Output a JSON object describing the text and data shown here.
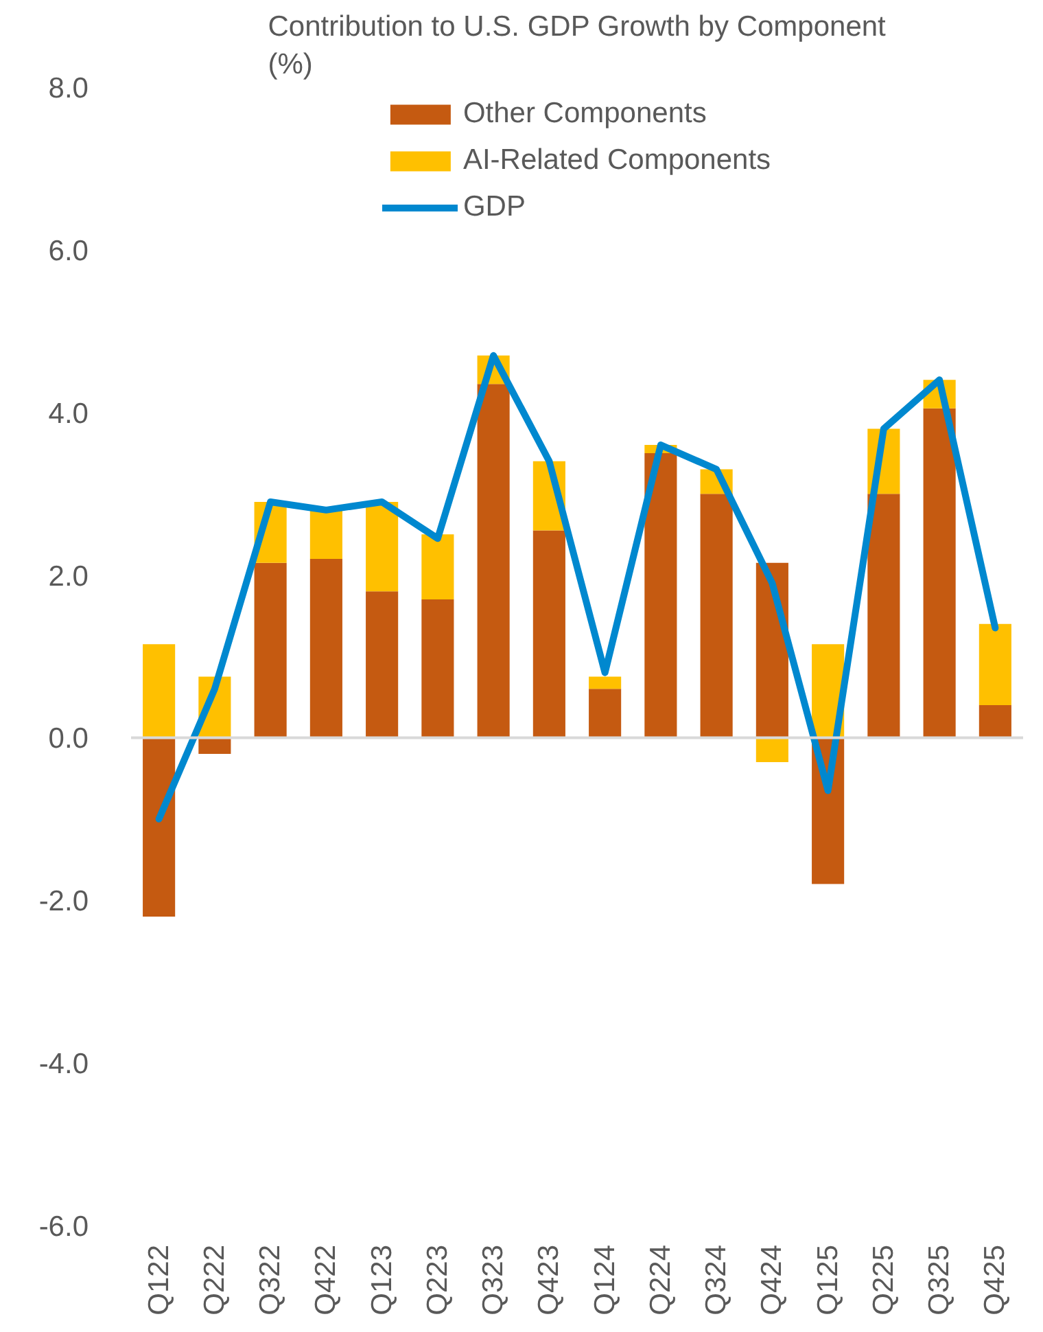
{
  "chart_data": {
    "type": "bar",
    "title": "Contribution to U.S. GDP Growth by Component (%)",
    "categories": [
      "Q122",
      "Q222",
      "Q322",
      "Q422",
      "Q123",
      "Q223",
      "Q323",
      "Q423",
      "Q124",
      "Q224",
      "Q324",
      "Q424",
      "Q125",
      "Q225",
      "Q325",
      "Q425"
    ],
    "stacked": true,
    "series": [
      {
        "name": "Other Components",
        "color": "#c55a11",
        "values": [
          -2.2,
          -0.2,
          2.15,
          2.2,
          1.8,
          1.7,
          4.35,
          2.55,
          0.6,
          3.5,
          3.0,
          2.15,
          -1.8,
          3.0,
          4.05,
          0.4
        ]
      },
      {
        "name": "AI-Related Components",
        "color": "#ffc000",
        "values": [
          1.15,
          0.75,
          0.75,
          0.6,
          1.1,
          0.8,
          0.35,
          0.85,
          0.15,
          0.1,
          0.3,
          -0.3,
          1.15,
          0.8,
          0.35,
          1.0
        ]
      },
      {
        "name": "GDP",
        "type": "line",
        "color": "#0088cf",
        "values": [
          -1.0,
          0.6,
          2.9,
          2.8,
          2.9,
          2.45,
          4.7,
          3.4,
          0.8,
          3.6,
          3.3,
          1.9,
          -0.65,
          3.8,
          4.4,
          1.35
        ]
      }
    ],
    "ylim": [
      -6,
      8
    ],
    "yticks": [
      {
        "value": -6,
        "label": "-6.0"
      },
      {
        "value": -4,
        "label": "-4.0"
      },
      {
        "value": -2,
        "label": "-2.0"
      },
      {
        "value": 0,
        "label": "0.0"
      },
      {
        "value": 2,
        "label": "2.0"
      },
      {
        "value": 4,
        "label": "4.0"
      },
      {
        "value": 6,
        "label": "6.0"
      },
      {
        "value": 8,
        "label": "8.0"
      }
    ],
    "ref_lines": [
      {
        "axis": "y",
        "value": 0,
        "color": "#d9d9d9"
      }
    ],
    "legend": "top"
  }
}
